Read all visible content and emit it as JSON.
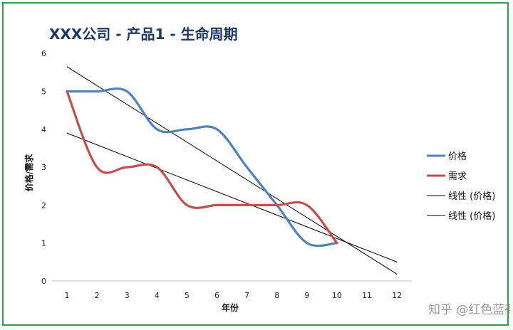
{
  "chart_data": {
    "type": "line",
    "title": "XXX公司 - 产品1 -  生命周期",
    "xlabel": "年份",
    "ylabel": "价格/需求",
    "categories": [
      1,
      2,
      3,
      4,
      5,
      6,
      7,
      8,
      9,
      10,
      11,
      12
    ],
    "ylim": [
      0,
      6
    ],
    "yticks": [
      0,
      1,
      2,
      3,
      4,
      5,
      6
    ],
    "series": [
      {
        "name": "价格",
        "x": [
          1,
          2,
          3,
          4,
          5,
          6,
          7,
          8,
          9,
          10
        ],
        "values": [
          5,
          5,
          5,
          4,
          4,
          4,
          3,
          2,
          1,
          1
        ],
        "color": "#4f81bd"
      },
      {
        "name": "需求",
        "x": [
          1,
          2,
          3,
          4,
          5,
          6,
          7,
          8,
          9,
          10
        ],
        "values": [
          5,
          3,
          3,
          3,
          2,
          2,
          2,
          2,
          2,
          1
        ],
        "color": "#c0504d"
      }
    ],
    "trendlines": [
      {
        "name": "线性 (价格)",
        "x": [
          1,
          12
        ],
        "values": [
          5.65,
          0.18
        ],
        "color": "#000000"
      },
      {
        "name": "线性 (价格)",
        "x": [
          1,
          12
        ],
        "values": [
          3.9,
          0.5
        ],
        "color": "#000000"
      }
    ],
    "legend_position": "right",
    "grid": false
  },
  "watermark": "知乎 @红色蓝德"
}
